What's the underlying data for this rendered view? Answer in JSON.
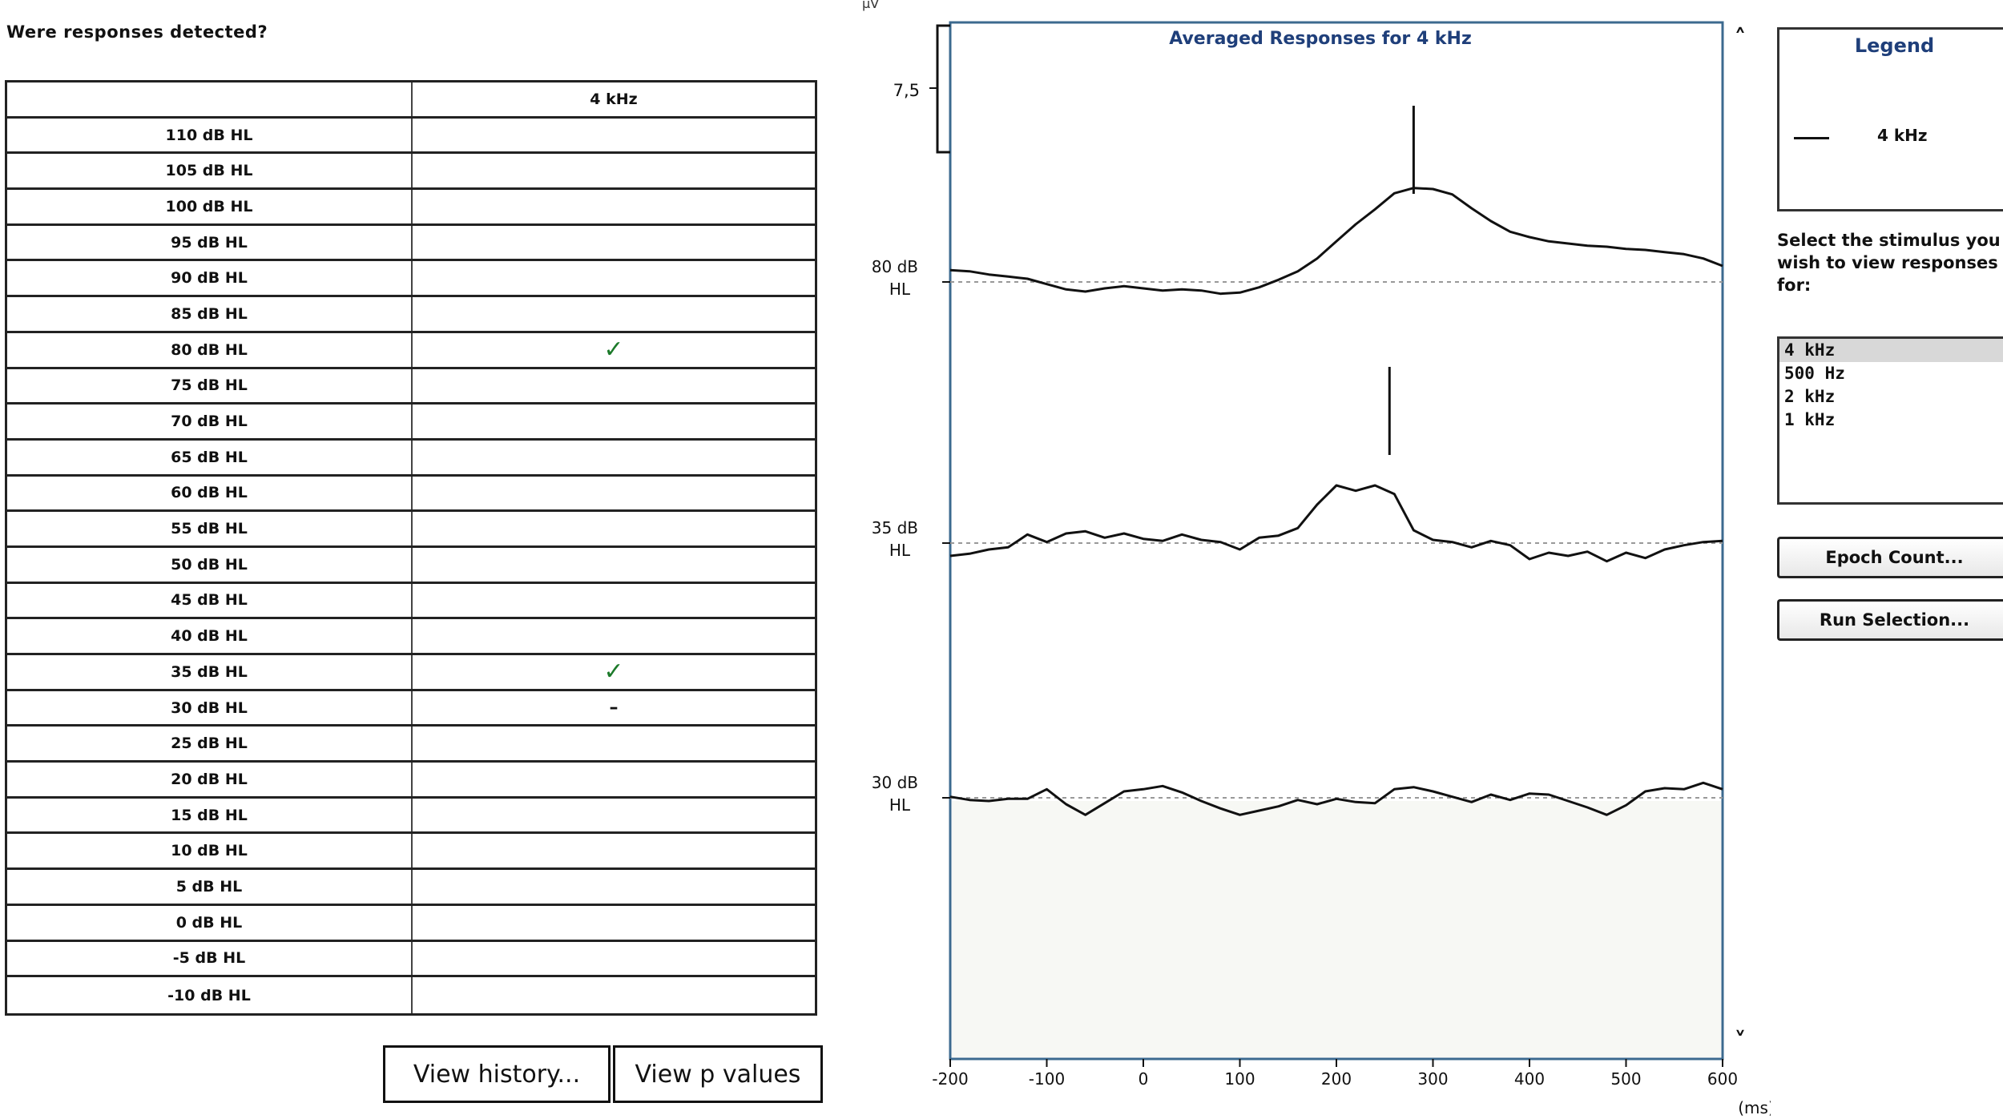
{
  "question": "Were responses detected?",
  "table": {
    "header": [
      "",
      "4 kHz"
    ],
    "rows": [
      {
        "level": "110 dB HL",
        "mark": ""
      },
      {
        "level": "105 dB HL",
        "mark": ""
      },
      {
        "level": "100 dB HL",
        "mark": ""
      },
      {
        "level": "95 dB HL",
        "mark": ""
      },
      {
        "level": "90 dB HL",
        "mark": ""
      },
      {
        "level": "85 dB HL",
        "mark": ""
      },
      {
        "level": "80 dB HL",
        "mark": "✓"
      },
      {
        "level": "75 dB HL",
        "mark": ""
      },
      {
        "level": "70 dB HL",
        "mark": ""
      },
      {
        "level": "65 dB HL",
        "mark": ""
      },
      {
        "level": "60 dB HL",
        "mark": ""
      },
      {
        "level": "55 dB HL",
        "mark": ""
      },
      {
        "level": "50 dB HL",
        "mark": ""
      },
      {
        "level": "45 dB HL",
        "mark": ""
      },
      {
        "level": "40 dB HL",
        "mark": ""
      },
      {
        "level": "35 dB HL",
        "mark": "✓"
      },
      {
        "level": "30 dB HL",
        "mark": "–"
      },
      {
        "level": "25 dB HL",
        "mark": ""
      },
      {
        "level": "20 dB HL",
        "mark": ""
      },
      {
        "level": "15 dB HL",
        "mark": ""
      },
      {
        "level": "10 dB HL",
        "mark": ""
      },
      {
        "level": "5 dB HL",
        "mark": ""
      },
      {
        "level": "0 dB HL",
        "mark": ""
      },
      {
        "level": "-5 dB HL",
        "mark": ""
      },
      {
        "level": "-10 dB HL",
        "mark": ""
      }
    ]
  },
  "buttons": {
    "history": "View history...",
    "pvalues": "View p values"
  },
  "chart": {
    "title": "Averaged Responses for 4 kHz",
    "yunit": "µV",
    "scale_label": "7,5",
    "xlabel": "(ms)",
    "x_ticks": [
      -200,
      -100,
      0,
      100,
      200,
      300,
      400,
      500,
      600
    ],
    "xlim": [
      -200,
      600
    ],
    "scroll_up": "˄",
    "scroll_down": "˅",
    "colors": {
      "trace": "#111111",
      "baseline": "#999999",
      "axis": "#3c6a8f",
      "title": "#1f3f7a"
    }
  },
  "chart_data": {
    "type": "line",
    "title": "Averaged Responses for 4 kHz",
    "xlabel": "(ms)",
    "ylabel": "µV",
    "xlim": [
      -200,
      600
    ],
    "scale_bar_uV": 7.5,
    "series": [
      {
        "name": "80 dB HL",
        "marker_ms": 280,
        "x": [
          -200,
          -180,
          -160,
          -140,
          -120,
          -100,
          -80,
          -60,
          -40,
          -20,
          0,
          20,
          40,
          60,
          80,
          100,
          120,
          140,
          160,
          180,
          200,
          220,
          240,
          260,
          280,
          300,
          320,
          340,
          360,
          380,
          400,
          420,
          440,
          460,
          480,
          500,
          520,
          540,
          560,
          580,
          600
        ],
        "y": [
          1.1,
          1.0,
          0.7,
          0.5,
          0.3,
          -0.2,
          -0.7,
          -0.9,
          -0.6,
          -0.4,
          -0.6,
          -0.8,
          -0.7,
          -0.8,
          -1.1,
          -1.0,
          -0.5,
          0.2,
          1.0,
          2.2,
          3.8,
          5.4,
          6.8,
          8.3,
          8.8,
          8.7,
          8.2,
          6.9,
          5.7,
          4.7,
          4.2,
          3.8,
          3.6,
          3.4,
          3.3,
          3.1,
          3.0,
          2.8,
          2.6,
          2.2,
          1.5
        ]
      },
      {
        "name": "35 dB HL",
        "marker_ms": 255,
        "x": [
          -200,
          -180,
          -160,
          -140,
          -120,
          -100,
          -80,
          -60,
          -40,
          -20,
          0,
          20,
          40,
          60,
          80,
          100,
          120,
          140,
          160,
          180,
          200,
          220,
          240,
          260,
          280,
          300,
          320,
          340,
          360,
          380,
          400,
          420,
          440,
          460,
          480,
          500,
          520,
          540,
          560,
          580,
          600
        ],
        "y": [
          -1.2,
          -1.0,
          -0.6,
          -0.4,
          0.8,
          0.1,
          0.9,
          1.1,
          0.5,
          0.9,
          0.4,
          0.2,
          0.8,
          0.3,
          0.1,
          -0.6,
          0.5,
          0.7,
          1.4,
          3.6,
          5.4,
          4.9,
          5.4,
          4.6,
          1.2,
          0.3,
          0.1,
          -0.4,
          0.2,
          -0.2,
          -1.5,
          -0.9,
          -1.2,
          -0.8,
          -1.7,
          -0.9,
          -1.4,
          -0.6,
          -0.2,
          0.1,
          0.2
        ]
      },
      {
        "name": "30 dB HL",
        "marker_ms": null,
        "x": [
          -200,
          -180,
          -160,
          -140,
          -120,
          -100,
          -80,
          -60,
          -40,
          -20,
          0,
          20,
          40,
          60,
          80,
          100,
          120,
          140,
          160,
          180,
          200,
          220,
          240,
          260,
          280,
          300,
          320,
          340,
          360,
          380,
          400,
          420,
          440,
          460,
          480,
          500,
          520,
          540,
          560,
          580,
          600
        ],
        "y": [
          0.1,
          -0.2,
          -0.3,
          -0.1,
          -0.1,
          0.8,
          -0.6,
          -1.6,
          -0.5,
          0.6,
          0.8,
          1.1,
          0.5,
          -0.3,
          -1.0,
          -1.6,
          -1.2,
          -0.8,
          -0.2,
          -0.6,
          -0.1,
          -0.4,
          -0.5,
          0.8,
          1.0,
          0.6,
          0.1,
          -0.4,
          0.3,
          -0.2,
          0.4,
          0.3,
          -0.3,
          -0.9,
          -1.6,
          -0.7,
          0.6,
          0.9,
          0.8,
          1.4,
          0.8
        ]
      }
    ]
  },
  "legend": {
    "title": "Legend",
    "item": "4 kHz"
  },
  "select_prompt": "Select the stimulus you\nwish to view responses\nfor:",
  "stimuli": [
    "4 kHz",
    "500 Hz",
    "2 kHz",
    "1 kHz"
  ],
  "side_buttons": {
    "epoch": "Epoch Count...",
    "run": "Run Selection..."
  }
}
